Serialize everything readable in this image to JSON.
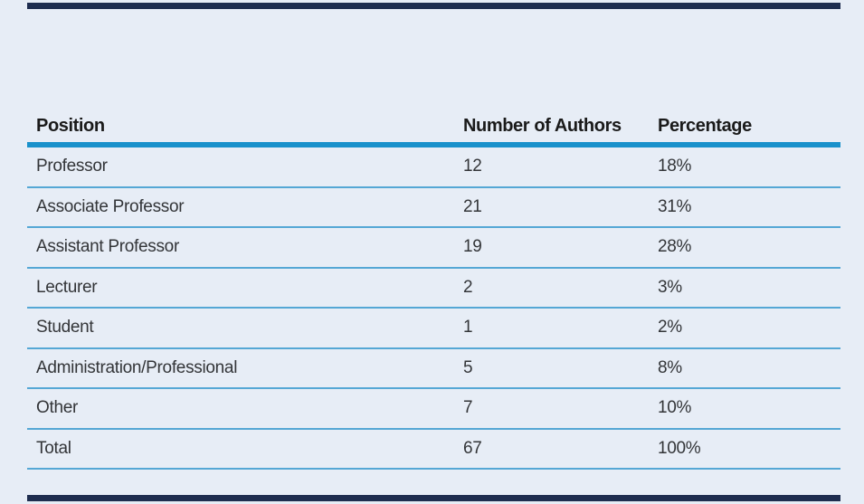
{
  "table": {
    "columns": [
      "Position",
      "Number of Authors",
      "Percentage"
    ],
    "rows": [
      {
        "position": "Professor",
        "authors": "12",
        "percentage": "18%"
      },
      {
        "position": "Associate Professor",
        "authors": "21",
        "percentage": "31%"
      },
      {
        "position": "Assistant Professor",
        "authors": "19",
        "percentage": "28%"
      },
      {
        "position": "Lecturer",
        "authors": "2",
        "percentage": "3%"
      },
      {
        "position": "Student",
        "authors": "1",
        "percentage": "2%"
      },
      {
        "position": "Administration/Professional",
        "authors": "5",
        "percentage": "8%"
      },
      {
        "position": "Other",
        "authors": "7",
        "percentage": "10%"
      },
      {
        "position": "Total",
        "authors": "67",
        "percentage": "100%"
      }
    ]
  },
  "colors": {
    "panel_background": "#e7edf6",
    "frame_rule": "#1e2d4f",
    "header_rule": "#1991cb",
    "row_rule": "#55a7d5",
    "header_text": "#1a1a1a",
    "body_text": "#333538"
  },
  "chart_data": {
    "type": "table",
    "title": "",
    "categories": [
      "Professor",
      "Associate Professor",
      "Assistant Professor",
      "Lecturer",
      "Student",
      "Administration/Professional",
      "Other",
      "Total"
    ],
    "series": [
      {
        "name": "Number of Authors",
        "values": [
          12,
          21,
          19,
          2,
          1,
          5,
          7,
          67
        ]
      },
      {
        "name": "Percentage",
        "values": [
          18,
          31,
          28,
          3,
          2,
          8,
          10,
          100
        ]
      }
    ]
  }
}
